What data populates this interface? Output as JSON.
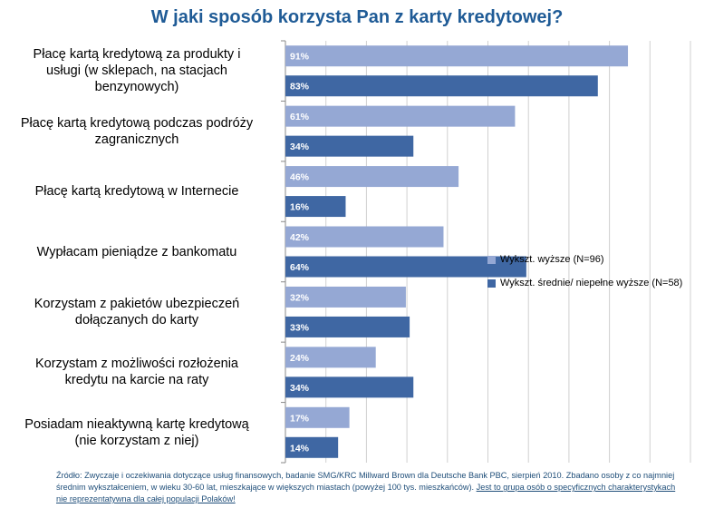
{
  "title": "W jaki sposób korzysta Pan z karty kredytowej?",
  "chart_data": {
    "type": "bar",
    "orientation": "horizontal",
    "title": "W jaki sposób korzysta Pan z karty kredytowej?",
    "categories": [
      "Płacę kartą kredytową za produkty i usługi (w sklepach, na stacjach benzynowych)",
      "Płacę kartą kredytową podczas podróży zagranicznych",
      "Płacę kartą kredytową w Internecie",
      "Wypłacam pieniądze z bankomatu",
      "Korzystam z pakietów ubezpieczeń dołączanych do karty",
      "Korzystam z możliwości rozłożenia kredytu na karcie na raty",
      "Posiadam nieaktywną kartę kredytową (nie korzystam z niej)"
    ],
    "category_lines": [
      [
        "Płacę kartą kredytową za produkty i",
        "usługi (w sklepach, na stacjach",
        "benzynowych)"
      ],
      [
        "Płacę kartą kredytową podczas podróży",
        "zagranicznych"
      ],
      [
        "Płacę kartą kredytową w Internecie"
      ],
      [
        "Wypłacam pieniądze z bankomatu"
      ],
      [
        "Korzystam z pakietów ubezpieczeń",
        "dołączanych do karty"
      ],
      [
        "Korzystam z możliwości rozłożenia",
        "kredytu na karcie na raty"
      ],
      [
        "Posiadam nieaktywną kartę kredytową",
        "(nie korzystam z niej)"
      ]
    ],
    "series": [
      {
        "name": "Wykszt. wyższe (N=96)",
        "color": "#95a8d4",
        "values": [
          91,
          61,
          46,
          42,
          32,
          24,
          17
        ]
      },
      {
        "name": "Wykszt. średnie/ niepełne wyższe (N=58)",
        "color": "#3f67a3",
        "values": [
          83,
          34,
          16,
          64,
          33,
          34,
          14
        ]
      }
    ],
    "value_suffix": "%",
    "xlim": [
      0,
      100
    ],
    "grid": true,
    "legend_position": "right"
  },
  "legend": {
    "items": [
      {
        "label": "Wykszt. wyższe (N=96)",
        "color": "#95a8d4"
      },
      {
        "label": "Wykszt. średnie/ niepełne wyższe (N=58)",
        "color": "#3f67a3"
      }
    ]
  },
  "source": {
    "text": "Źródło: Zwyczaje i oczekiwania dotyczące usług finansowych, badanie SMG/KRC Millward Brown dla Deutsche Bank PBC, sierpień 2010. Zbadano osoby z co najmniej średnim wykształceniem, w wieku 30-60 lat, mieszkające w większych miastach (powyżej 100 tys. mieszkańców). ",
    "highlight": "Jest to grupa osób o specyficznych charakterystykach nie reprezentatywna dla całej populacji Polaków!"
  }
}
